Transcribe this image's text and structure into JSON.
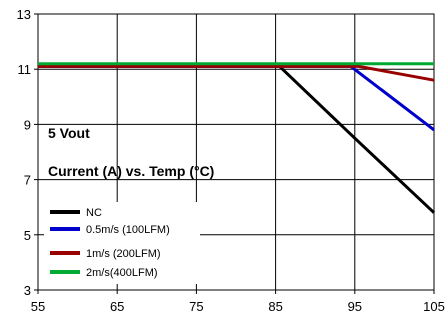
{
  "chart_data": {
    "type": "line",
    "title": "",
    "xlabel": "",
    "ylabel": "",
    "xlim": [
      55,
      105
    ],
    "ylim": [
      3,
      13
    ],
    "x_ticks": [
      55,
      65,
      75,
      85,
      95,
      105
    ],
    "y_ticks": [
      3,
      5,
      7,
      9,
      11,
      13
    ],
    "grid": true,
    "legend_position": "bottom-left",
    "annotations": [
      "5 Vout",
      "Current (A) vs. Temp (°C)"
    ],
    "series": [
      {
        "name": "NC",
        "color": "#000000",
        "x": [
          55,
          85.5,
          95,
          105
        ],
        "y": [
          11.1,
          11.1,
          8.5,
          5.8
        ]
      },
      {
        "name": "0.5m/s (100LFM)",
        "color": "#0000cc",
        "x": [
          55,
          94.5,
          105
        ],
        "y": [
          11.1,
          11.1,
          8.8
        ]
      },
      {
        "name": "1m/s (200LFM)",
        "color": "#990000",
        "x": [
          55,
          95.5,
          105
        ],
        "y": [
          11.1,
          11.1,
          10.6
        ]
      },
      {
        "name": "2m/s(400LFM)",
        "color": "#00aa33",
        "x": [
          55,
          105
        ],
        "y": [
          11.2,
          11.2
        ]
      }
    ]
  }
}
